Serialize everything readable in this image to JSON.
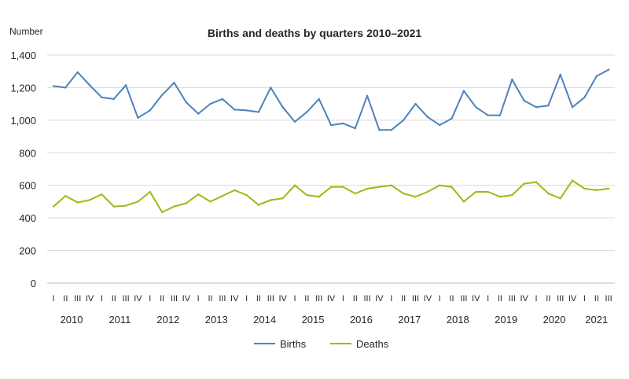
{
  "chart_data": {
    "type": "line",
    "title": "Births and deaths by quarters 2010–2021",
    "ylabel": "Number",
    "xlabel": "",
    "ylim": [
      0,
      1400
    ],
    "yticks": [
      "0",
      "200",
      "400",
      "600",
      "800",
      "1,000",
      "1,200",
      "1,400"
    ],
    "grid": true,
    "legend_position": "bottom",
    "quarter_labels": [
      "I",
      "II",
      "III",
      "IV",
      "I",
      "II",
      "III",
      "IV",
      "I",
      "II",
      "III",
      "IV",
      "I",
      "II",
      "III",
      "IV",
      "I",
      "II",
      "III",
      "IV",
      "I",
      "II",
      "III",
      "IV",
      "I",
      "II",
      "III",
      "IV",
      "I",
      "II",
      "III",
      "IV",
      "I",
      "II",
      "III",
      "IV",
      "I",
      "II",
      "III",
      "IV",
      "I",
      "II",
      "III",
      "IV",
      "I",
      "II",
      "III"
    ],
    "years": [
      "2010",
      "2011",
      "2012",
      "2013",
      "2014",
      "2015",
      "2016",
      "2017",
      "2018",
      "2019",
      "2020",
      "2021"
    ],
    "series": [
      {
        "name": "Births",
        "color": "#4f81bd",
        "values": [
          1210,
          1200,
          1295,
          1215,
          1140,
          1130,
          1215,
          1015,
          1060,
          1155,
          1230,
          1110,
          1040,
          1100,
          1130,
          1065,
          1060,
          1050,
          1200,
          1080,
          990,
          1050,
          1130,
          970,
          980,
          950,
          1150,
          940,
          940,
          1000,
          1100,
          1020,
          970,
          1010,
          1180,
          1080,
          1030,
          1030,
          1250,
          1120,
          1080,
          1090,
          1280,
          1080,
          1140,
          1270,
          1310
        ]
      },
      {
        "name": "Deaths",
        "color": "#9bbb15",
        "values": [
          470,
          535,
          495,
          510,
          545,
          470,
          475,
          500,
          560,
          435,
          470,
          490,
          545,
          500,
          535,
          570,
          540,
          480,
          510,
          520,
          600,
          540,
          530,
          590,
          590,
          550,
          580,
          590,
          600,
          550,
          530,
          560,
          600,
          590,
          500,
          560,
          560,
          530,
          540,
          610,
          620,
          550,
          520,
          630,
          580,
          570,
          580
        ]
      }
    ]
  }
}
